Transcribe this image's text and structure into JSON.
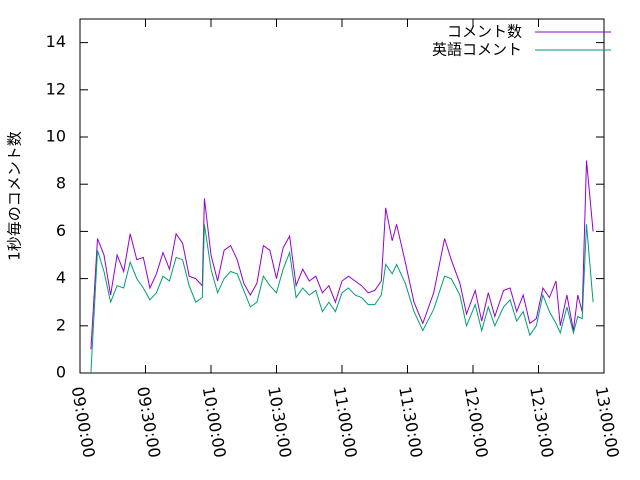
{
  "chart_data": {
    "type": "line",
    "y_label": "1秒毎のコメント数",
    "x": [
      "09:05:00",
      "09:08:00",
      "09:11:00",
      "09:14:00",
      "09:17:00",
      "09:20:00",
      "09:23:00",
      "09:26:00",
      "09:29:00",
      "09:32:00",
      "09:35:00",
      "09:38:00",
      "09:41:00",
      "09:44:00",
      "09:47:00",
      "09:50:00",
      "09:53:00",
      "09:56:00",
      "09:57:00",
      "10:00:00",
      "10:03:00",
      "10:06:00",
      "10:09:00",
      "10:12:00",
      "10:15:00",
      "10:18:00",
      "10:21:00",
      "10:24:00",
      "10:27:00",
      "10:30:00",
      "10:33:00",
      "10:36:00",
      "10:39:00",
      "10:42:00",
      "10:45:00",
      "10:48:00",
      "10:51:00",
      "10:54:00",
      "10:57:00",
      "11:00:00",
      "11:03:00",
      "11:06:00",
      "11:09:00",
      "11:12:00",
      "11:15:00",
      "11:18:00",
      "11:20:00",
      "11:23:00",
      "11:25:00",
      "11:29:00",
      "11:33:00",
      "11:37:00",
      "11:42:00",
      "11:47:00",
      "11:50:00",
      "11:54:00",
      "11:57:00",
      "12:01:00",
      "12:04:00",
      "12:07:00",
      "12:10:00",
      "12:14:00",
      "12:17:00",
      "12:20:00",
      "12:23:00",
      "12:26:00",
      "12:29:00",
      "12:32:00",
      "12:35:00",
      "12:38:00",
      "12:40:00",
      "12:43:00",
      "12:46:00",
      "12:48:00",
      "12:50:00",
      "12:52:00",
      "12:55:00"
    ],
    "series": [
      {
        "name": "コメント数",
        "color": "#9400d3",
        "values": [
          1.0,
          5.7,
          5.0,
          3.3,
          5.0,
          4.3,
          5.9,
          4.8,
          4.9,
          3.6,
          4.2,
          5.1,
          4.4,
          5.9,
          5.5,
          4.1,
          4.0,
          3.7,
          7.4,
          5.0,
          3.9,
          5.2,
          5.4,
          4.8,
          3.8,
          3.3,
          3.8,
          5.4,
          5.2,
          4.0,
          5.3,
          5.8,
          3.7,
          4.4,
          3.9,
          4.1,
          3.4,
          3.7,
          3.0,
          3.9,
          4.1,
          3.9,
          3.7,
          3.4,
          3.5,
          3.9,
          7.0,
          5.6,
          6.3,
          4.7,
          3.0,
          2.1,
          3.4,
          5.7,
          4.8,
          3.8,
          2.5,
          3.5,
          2.2,
          3.4,
          2.4,
          3.5,
          3.6,
          2.6,
          3.3,
          2.1,
          2.3,
          3.6,
          3.2,
          3.9,
          2.0,
          3.3,
          1.8,
          3.3,
          2.6,
          9.0,
          6.0
        ]
      },
      {
        "name": "英語コメント",
        "color": "#009e73",
        "values": [
          0.0,
          5.2,
          4.3,
          3.0,
          3.7,
          3.6,
          4.7,
          4.0,
          3.6,
          3.1,
          3.4,
          4.1,
          3.9,
          4.9,
          4.8,
          3.7,
          3.0,
          3.2,
          6.3,
          4.4,
          3.4,
          4.0,
          4.3,
          4.2,
          3.5,
          2.8,
          3.0,
          4.1,
          3.7,
          3.4,
          4.4,
          5.1,
          3.2,
          3.6,
          3.3,
          3.5,
          2.6,
          3.0,
          2.6,
          3.4,
          3.6,
          3.3,
          3.2,
          2.9,
          2.9,
          3.3,
          4.6,
          4.2,
          4.6,
          3.8,
          2.6,
          1.8,
          2.7,
          4.1,
          4.0,
          3.3,
          2.0,
          2.9,
          1.8,
          2.8,
          2.0,
          2.8,
          3.1,
          2.2,
          2.6,
          1.6,
          2.0,
          3.3,
          2.6,
          2.1,
          1.7,
          2.8,
          1.7,
          2.4,
          2.3,
          6.3,
          3.0
        ]
      }
    ],
    "xlim": [
      "09:00:00",
      "13:00:00"
    ],
    "xticks": [
      "09:00:00",
      "09:30:00",
      "10:00:00",
      "10:30:00",
      "11:00:00",
      "11:30:00",
      "12:00:00",
      "12:30:00",
      "13:00:00"
    ],
    "ylim": [
      0,
      15
    ],
    "yticks": [
      0,
      2,
      4,
      6,
      8,
      10,
      12,
      14
    ],
    "legend": "top-right"
  }
}
